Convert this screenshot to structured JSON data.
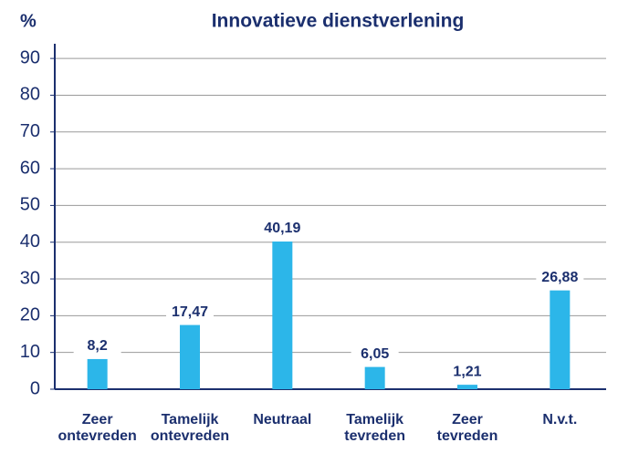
{
  "chart_data": {
    "type": "bar",
    "title": "Innovatieve dienstverlening",
    "y_label": "%",
    "categories": [
      "Zeer ontevreden",
      "Tamelijk ontevreden",
      "Neutraal",
      "Tamelijk tevreden",
      "Zeer tevreden",
      "N.v.t."
    ],
    "values": [
      8.2,
      17.47,
      40.19,
      6.05,
      1.21,
      26.88
    ],
    "value_labels": [
      "8,2",
      "17,47",
      "40,19",
      "6,05",
      "1,21",
      "26,88"
    ],
    "color": "#2cb6e9",
    "ylim": [
      0,
      94
    ],
    "yticks": [
      0,
      10,
      20,
      30,
      40,
      50,
      60,
      70,
      80,
      90
    ],
    "grid": true
  }
}
